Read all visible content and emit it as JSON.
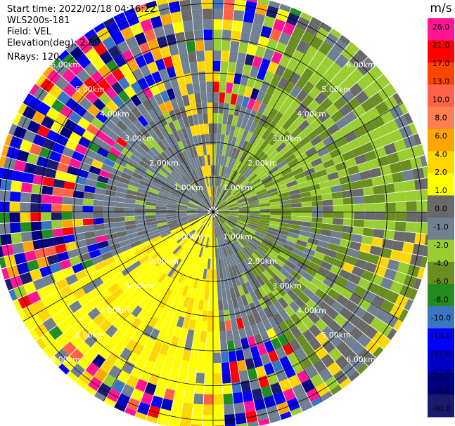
{
  "info": {
    "start_time": "Start time: 2022/02/18 04:16:22",
    "site": "WLS200s-181",
    "field": "Field: VEL",
    "elevation": "Elevation(deg): 2.00",
    "nrays": "NRays: 120"
  },
  "chart_data": {
    "type": "heatmap",
    "projection": "polar PPI (range-azimuth)",
    "title": "",
    "range_unit": "km",
    "range_max_km": 6.3,
    "range_ring_labels": [
      "1.00km",
      "2.00km",
      "3.00km",
      "4.00km",
      "5.00km",
      "6.00km"
    ],
    "range_ring_values": [
      1,
      2,
      3,
      4,
      5,
      6
    ],
    "n_rays": 120,
    "colorbar": {
      "unit": "m/s",
      "colors": [
        "#1a1a6e",
        "#000080",
        "#0000cd",
        "#0000ff",
        "#3a75c4",
        "#228b22",
        "#6b8e23",
        "#9acd32",
        "#708090",
        "#696969",
        "#ffff00",
        "#ffd700",
        "#ffa500",
        "#ff7f50",
        "#ff6347",
        "#ff4500",
        "#ff0000",
        "#ff1493"
      ],
      "tick_labels": [
        "26.0",
        "21.0",
        "17.0",
        "13.0",
        "10.0",
        "8.0",
        "6.0",
        "4.0",
        "2.0",
        "1.0",
        "0.0",
        "-1.0",
        "-2.0",
        "-4.0",
        "-6.0",
        "-8.0",
        "-10.0",
        "-13.0",
        "-17.0",
        "-21.0",
        "-26.0",
        "-30.0"
      ],
      "max": 30,
      "min": -30
    },
    "sectors": [
      {
        "from_az": 0,
        "to_az": 25,
        "pattern": "mixed-noise",
        "note": "north: narrow near-range band, noisy far range"
      },
      {
        "from_az": 25,
        "to_az": 95,
        "pattern": "green-olive",
        "note": "approaching flow, -1 to -4 m/s"
      },
      {
        "from_az": 95,
        "to_az": 150,
        "pattern": "olive-gray",
        "note": "east/south-east: -2 to 0 m/s with yellow patches"
      },
      {
        "from_az": 150,
        "to_az": 178,
        "pattern": "gray-noise",
        "note": "south-east: near zero, noisy beyond 4 km"
      },
      {
        "from_az": 178,
        "to_az": 245,
        "pattern": "yellow",
        "note": "south-south-west: receding flow 2 to 4 m/s"
      },
      {
        "from_az": 245,
        "to_az": 345,
        "pattern": "gray-noise",
        "note": "west/north-west: gray near range, noise beyond 3 km"
      },
      {
        "from_az": 345,
        "to_az": 360,
        "pattern": "yellow-gray",
        "note": "north-north-west: yellow/gray"
      }
    ]
  }
}
